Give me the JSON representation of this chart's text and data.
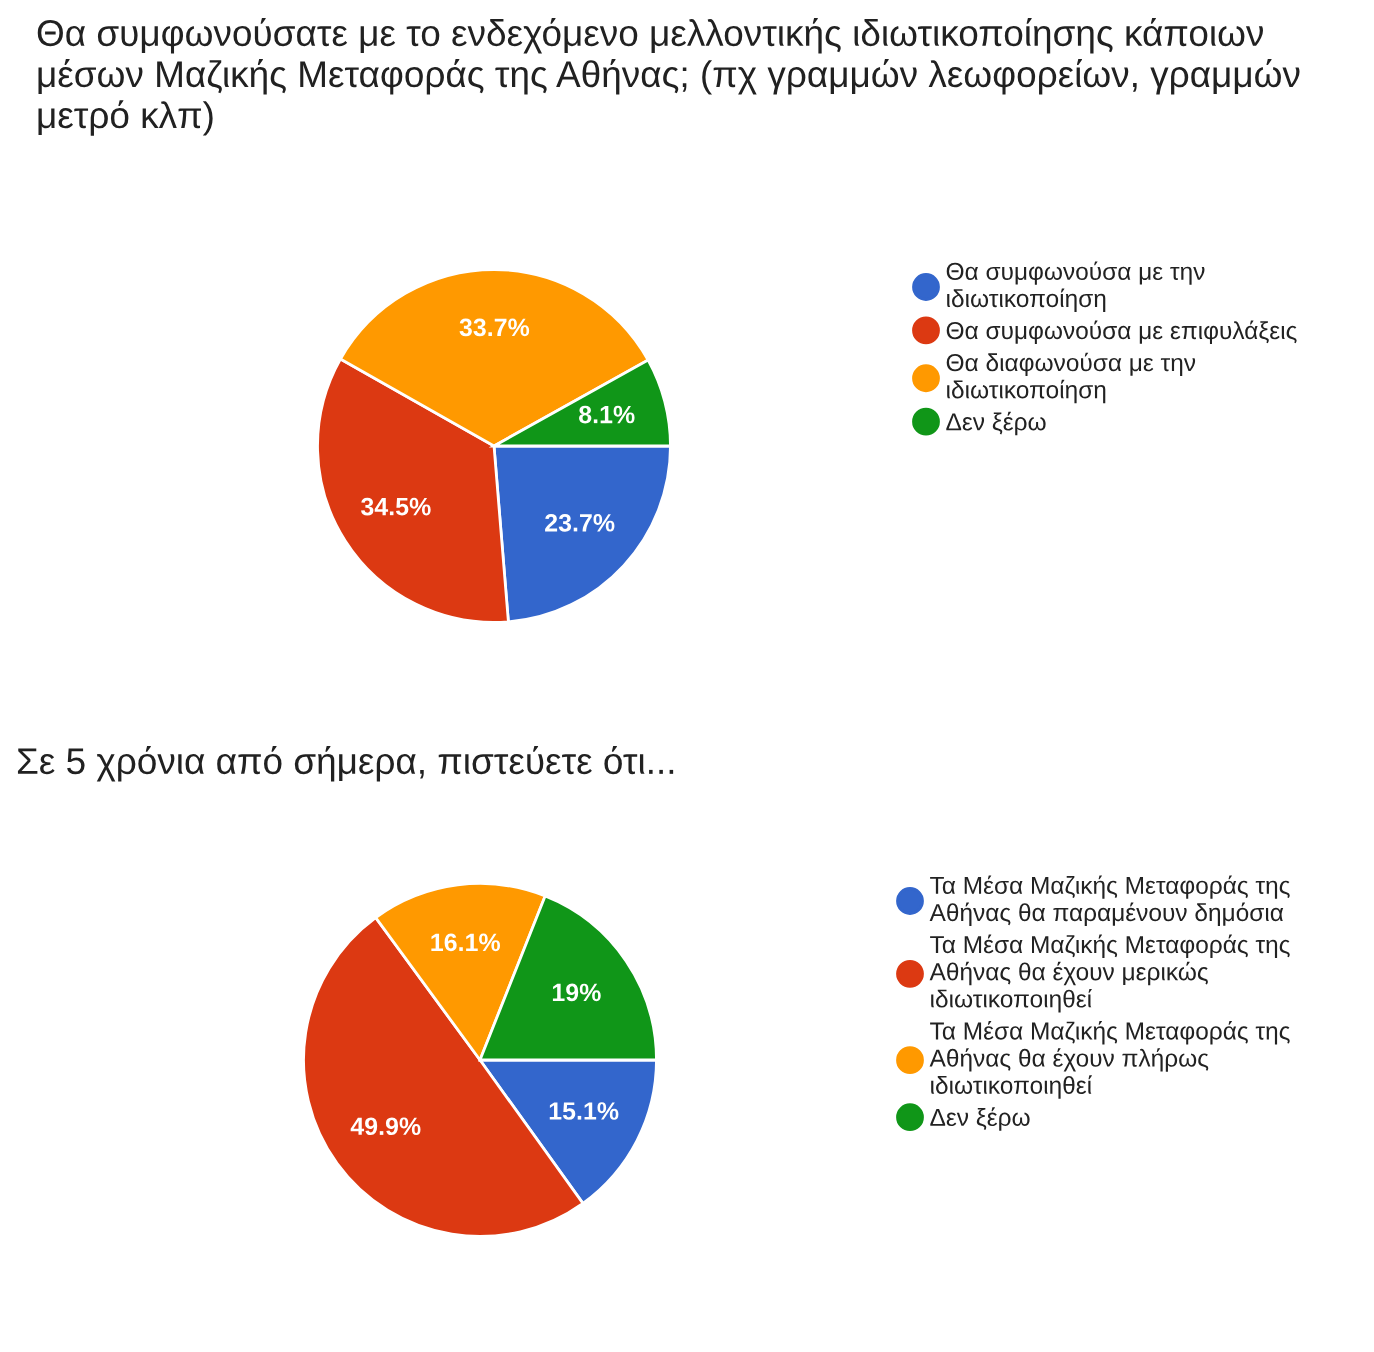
{
  "chart_data": [
    {
      "type": "pie",
      "title": "Θα συμφωνούσατε με το ενδεχόμενο μελλοντικής ιδιωτικοποίησης κάποιων μέσων Μαζικής Μεταφοράς της Αθήνας; (πχ γραμμών λεωφορείων, γραμμών μετρό κλπ)",
      "categories": [
        "Θα συμφωνούσα με την ιδιωτικοποίηση",
        "Θα συμφωνούσα με επιφυλάξεις",
        "Θα διαφωνούσα με την ιδιωτικοποίηση",
        "Δεν ξέρω"
      ],
      "values": [
        23.7,
        34.5,
        33.7,
        8.1
      ],
      "value_labels": [
        "23.7%",
        "34.5%",
        "33.7%",
        "8.1%"
      ],
      "colors": [
        "#3366cc",
        "#dc3912",
        "#ff9900",
        "#109618"
      ],
      "legend": "right"
    },
    {
      "type": "pie",
      "title": "Σε 5 χρόνια από σήμερα, πιστεύετε ότι...",
      "categories": [
        "Τα Μέσα Μαζικής Μεταφοράς της Αθήνας θα παραμένουν δημόσια",
        "Τα Μέσα Μαζικής Μεταφοράς της Αθήνας θα έχουν μερικώς ιδιωτικοποιηθεί",
        "Τα Μέσα Μαζικής Μεταφοράς της Αθήνας θα έχουν πλήρως ιδιωτικοποιηθεί",
        "Δεν ξέρω"
      ],
      "values": [
        15.1,
        49.9,
        16.1,
        19
      ],
      "value_labels": [
        "15.1%",
        "49.9%",
        "16.1%",
        "19%"
      ],
      "colors": [
        "#3366cc",
        "#dc3912",
        "#ff9900",
        "#109618"
      ],
      "legend": "right"
    }
  ]
}
